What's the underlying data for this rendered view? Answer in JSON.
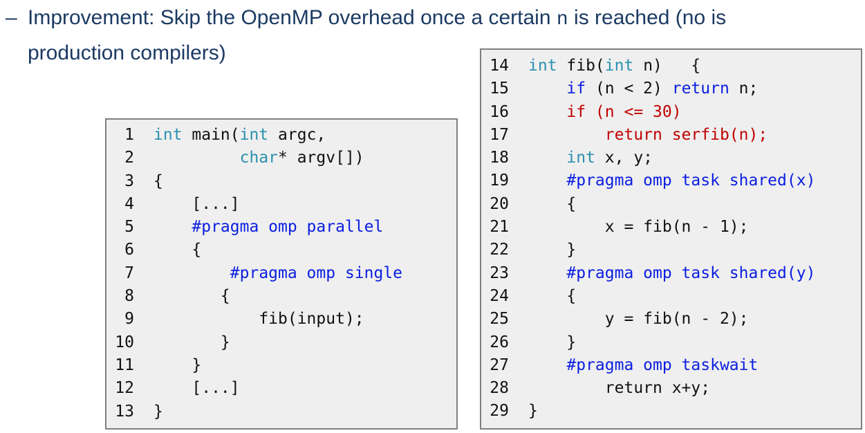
{
  "bullet": {
    "dash": "–",
    "text_before": "Improvement: Skip the OpenMP overhead once a certain ",
    "code_n": "n",
    "text_after": " is reached (no is",
    "line2": "production compilers)"
  },
  "colors": {
    "heading": "#1b3a63",
    "type": "#2b91af",
    "keyword": "#0a1ee0",
    "highlight": "#c00000",
    "box_bg": "#efefef"
  },
  "code_left": [
    {
      "num": "1",
      "tokens": [
        {
          "t": "int",
          "c": "type"
        },
        {
          "t": " main(",
          "c": "plain"
        },
        {
          "t": "int",
          "c": "type"
        },
        {
          "t": " argc,",
          "c": "plain"
        }
      ]
    },
    {
      "num": "2",
      "tokens": [
        {
          "t": "         ",
          "c": "plain"
        },
        {
          "t": "char",
          "c": "type"
        },
        {
          "t": "* argv[])",
          "c": "plain"
        }
      ]
    },
    {
      "num": "3",
      "tokens": [
        {
          "t": "{",
          "c": "plain"
        }
      ]
    },
    {
      "num": "4",
      "tokens": [
        {
          "t": "    [...]",
          "c": "plain"
        }
      ]
    },
    {
      "num": "5",
      "tokens": [
        {
          "t": "    ",
          "c": "plain"
        },
        {
          "t": "#pragma omp parallel",
          "c": "kw"
        }
      ]
    },
    {
      "num": "6",
      "tokens": [
        {
          "t": "    {",
          "c": "plain"
        }
      ]
    },
    {
      "num": "7",
      "tokens": [
        {
          "t": "        ",
          "c": "plain"
        },
        {
          "t": "#pragma omp single",
          "c": "kw"
        }
      ]
    },
    {
      "num": "8",
      "tokens": [
        {
          "t": "       {",
          "c": "plain"
        }
      ]
    },
    {
      "num": "9",
      "tokens": [
        {
          "t": "           fib(input);",
          "c": "plain"
        }
      ]
    },
    {
      "num": "10",
      "tokens": [
        {
          "t": "       }",
          "c": "plain"
        }
      ]
    },
    {
      "num": "11",
      "tokens": [
        {
          "t": "    }",
          "c": "plain"
        }
      ]
    },
    {
      "num": "12",
      "tokens": [
        {
          "t": "    [...]",
          "c": "plain"
        }
      ]
    },
    {
      "num": "13",
      "tokens": [
        {
          "t": "}",
          "c": "plain"
        }
      ]
    }
  ],
  "code_right": [
    {
      "num": "14",
      "tokens": [
        {
          "t": "int",
          "c": "type"
        },
        {
          "t": " fib(",
          "c": "plain"
        },
        {
          "t": "int",
          "c": "type"
        },
        {
          "t": " n)   {",
          "c": "plain"
        }
      ]
    },
    {
      "num": "15",
      "tokens": [
        {
          "t": "    ",
          "c": "plain"
        },
        {
          "t": "if",
          "c": "kw"
        },
        {
          "t": " (n < 2) ",
          "c": "plain"
        },
        {
          "t": "return",
          "c": "kw"
        },
        {
          "t": " n;",
          "c": "plain"
        }
      ]
    },
    {
      "num": "16",
      "tokens": [
        {
          "t": "    ",
          "c": "plain"
        },
        {
          "t": "if (n <= 30)",
          "c": "red"
        }
      ]
    },
    {
      "num": "17",
      "tokens": [
        {
          "t": "        ",
          "c": "plain"
        },
        {
          "t": "return serfib(n);",
          "c": "red"
        }
      ]
    },
    {
      "num": "18",
      "tokens": [
        {
          "t": "    ",
          "c": "plain"
        },
        {
          "t": "int",
          "c": "type"
        },
        {
          "t": " x, y;",
          "c": "plain"
        }
      ]
    },
    {
      "num": "19",
      "tokens": [
        {
          "t": "    ",
          "c": "plain"
        },
        {
          "t": "#pragma omp task shared(x)",
          "c": "kw"
        }
      ]
    },
    {
      "num": "20",
      "tokens": [
        {
          "t": "    {",
          "c": "plain"
        }
      ]
    },
    {
      "num": "21",
      "tokens": [
        {
          "t": "        x = fib(n - 1);",
          "c": "plain"
        }
      ]
    },
    {
      "num": "22",
      "tokens": [
        {
          "t": "    }",
          "c": "plain"
        }
      ]
    },
    {
      "num": "23",
      "tokens": [
        {
          "t": "    ",
          "c": "plain"
        },
        {
          "t": "#pragma omp task shared(y)",
          "c": "kw"
        }
      ]
    },
    {
      "num": "24",
      "tokens": [
        {
          "t": "    {",
          "c": "plain"
        }
      ]
    },
    {
      "num": "25",
      "tokens": [
        {
          "t": "        y = fib(n - 2);",
          "c": "plain"
        }
      ]
    },
    {
      "num": "26",
      "tokens": [
        {
          "t": "    }",
          "c": "plain"
        }
      ]
    },
    {
      "num": "27",
      "tokens": [
        {
          "t": "    ",
          "c": "plain"
        },
        {
          "t": "#pragma omp taskwait",
          "c": "kw"
        }
      ]
    },
    {
      "num": "28",
      "tokens": [
        {
          "t": "        return x+y;",
          "c": "plain"
        }
      ]
    },
    {
      "num": "29",
      "tokens": [
        {
          "t": "}",
          "c": "plain"
        }
      ]
    }
  ]
}
